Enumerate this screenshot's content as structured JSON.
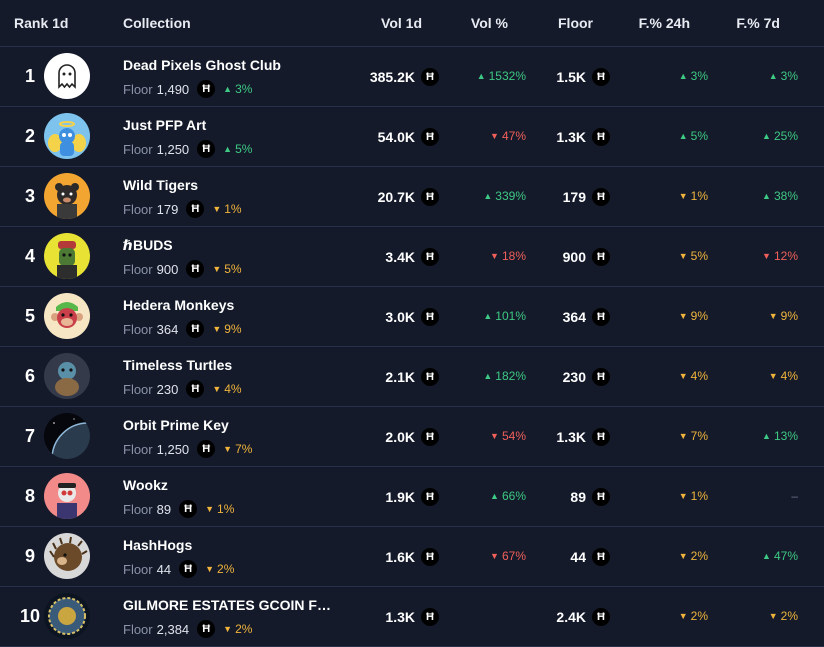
{
  "header": {
    "rank": "Rank 1d",
    "collection": "Collection",
    "vol1d": "Vol 1d",
    "volpct": "Vol %",
    "floor": "Floor",
    "f24h": "F.% 24h",
    "f7d": "F.% 7d"
  },
  "floor_label": "Floor",
  "currency_symbol": "Ħ",
  "up_arrow": "▲",
  "down_arrow": "▼",
  "rows": [
    {
      "rank": "1",
      "name": "Dead Pixels Ghost Club",
      "floor_sub": "1,490",
      "floor_sub_change": "3%",
      "floor_sub_dir": "up",
      "vol": "385.2K",
      "vol_pct": "1532%",
      "vol_pct_dir": "up",
      "floor": "1.5K",
      "f24": "3%",
      "f24_dir": "up",
      "f7": "3%",
      "f7_dir": "up",
      "avatar": "ghost"
    },
    {
      "rank": "2",
      "name": "Just PFP Art",
      "floor_sub": "1,250",
      "floor_sub_change": "5%",
      "floor_sub_dir": "up",
      "vol": "54.0K",
      "vol_pct": "47%",
      "vol_pct_dir": "down",
      "floor": "1.3K",
      "f24": "5%",
      "f24_dir": "up",
      "f7": "25%",
      "f7_dir": "up",
      "avatar": "angel"
    },
    {
      "rank": "3",
      "name": "Wild Tigers",
      "floor_sub": "179",
      "floor_sub_change": "1%",
      "floor_sub_dir": "warn",
      "vol": "20.7K",
      "vol_pct": "339%",
      "vol_pct_dir": "up",
      "floor": "179",
      "f24": "1%",
      "f24_dir": "warn",
      "f7": "38%",
      "f7_dir": "up",
      "avatar": "tiger"
    },
    {
      "rank": "4",
      "name": "ℏBUDS",
      "floor_sub": "900",
      "floor_sub_change": "5%",
      "floor_sub_dir": "warn",
      "vol": "3.4K",
      "vol_pct": "18%",
      "vol_pct_dir": "down",
      "floor": "900",
      "f24": "5%",
      "f24_dir": "warn",
      "f7": "12%",
      "f7_dir": "down",
      "avatar": "bud"
    },
    {
      "rank": "5",
      "name": "Hedera Monkeys",
      "floor_sub": "364",
      "floor_sub_change": "9%",
      "floor_sub_dir": "warn",
      "vol": "3.0K",
      "vol_pct": "101%",
      "vol_pct_dir": "up",
      "floor": "364",
      "f24": "9%",
      "f24_dir": "warn",
      "f7": "9%",
      "f7_dir": "warn",
      "avatar": "monkey"
    },
    {
      "rank": "6",
      "name": "Timeless Turtles",
      "floor_sub": "230",
      "floor_sub_change": "4%",
      "floor_sub_dir": "warn",
      "vol": "2.1K",
      "vol_pct": "182%",
      "vol_pct_dir": "up",
      "floor": "230",
      "f24": "4%",
      "f24_dir": "warn",
      "f7": "4%",
      "f7_dir": "warn",
      "avatar": "turtle"
    },
    {
      "rank": "7",
      "name": "Orbit Prime Key",
      "floor_sub": "1,250",
      "floor_sub_change": "7%",
      "floor_sub_dir": "warn",
      "vol": "2.0K",
      "vol_pct": "54%",
      "vol_pct_dir": "down",
      "floor": "1.3K",
      "f24": "7%",
      "f24_dir": "warn",
      "f7": "13%",
      "f7_dir": "up",
      "avatar": "planet"
    },
    {
      "rank": "8",
      "name": "Wookz",
      "floor_sub": "89",
      "floor_sub_change": "1%",
      "floor_sub_dir": "warn",
      "vol": "1.9K",
      "vol_pct": "66%",
      "vol_pct_dir": "up",
      "floor": "89",
      "f24": "1%",
      "f24_dir": "warn",
      "f7": "–",
      "f7_dir": "nil",
      "avatar": "wookz"
    },
    {
      "rank": "9",
      "name": "HashHogs",
      "floor_sub": "44",
      "floor_sub_change": "2%",
      "floor_sub_dir": "warn",
      "vol": "1.6K",
      "vol_pct": "67%",
      "vol_pct_dir": "down",
      "floor": "44",
      "f24": "2%",
      "f24_dir": "warn",
      "f7": "47%",
      "f7_dir": "up",
      "avatar": "hog"
    },
    {
      "rank": "10",
      "name": "GILMORE ESTATES GCOIN FOUNDERS",
      "floor_sub": "2,384",
      "floor_sub_change": "2%",
      "floor_sub_dir": "warn",
      "vol": "1.3K",
      "vol_pct": "",
      "vol_pct_dir": "nil",
      "floor": "2.4K",
      "f24": "2%",
      "f24_dir": "warn",
      "f7": "2%",
      "f7_dir": "warn",
      "avatar": "coin"
    }
  ]
}
